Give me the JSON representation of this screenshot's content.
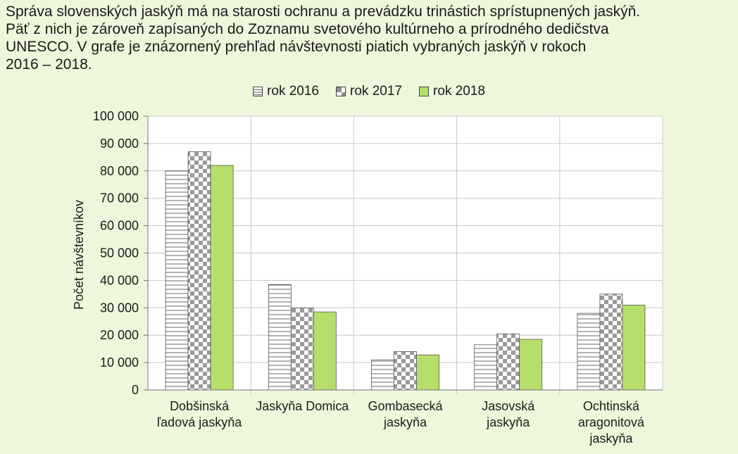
{
  "intro": {
    "line1": "Správa slovenských jaskýň má na starosti ochranu a prevádzku trinástich sprístupnených jaskýň.",
    "line2": "Päť z nich je zároveň zapísaných do Zoznamu svetového kultúrneho a prírodného dedičstva",
    "line3": "UNESCO. V grafe je znázornený prehľad návštevnosti piatich vybraných jaskýň v rokoch",
    "line4": "2016 – 2018."
  },
  "chart_data": {
    "type": "bar",
    "title": "",
    "xlabel": "",
    "ylabel": "Počet návštevníkov",
    "ylim": [
      0,
      100000
    ],
    "yticks": [
      "0",
      "10 000",
      "20 000",
      "30 000",
      "40 000",
      "50 000",
      "60 000",
      "70 000",
      "80 000",
      "90 000",
      "100 000"
    ],
    "grid": true,
    "legend_position": "top-center",
    "categories": [
      [
        "Dobšinská",
        "ľadová jaskyňa"
      ],
      [
        "Jaskyňa Domica"
      ],
      [
        "Gombasecká",
        "jaskyňa"
      ],
      [
        "Jasovská",
        "jaskyňa"
      ],
      [
        "Ochtinská",
        "aragonitová",
        "jaskyňa"
      ]
    ],
    "series": [
      {
        "name": "rok 2016",
        "pattern": "horizontal-lines",
        "color": "#ffffff",
        "values": [
          80000,
          38500,
          11000,
          16500,
          28000
        ]
      },
      {
        "name": "rok 2017",
        "pattern": "checkerboard",
        "color": "#9a9a9a",
        "values": [
          87000,
          30000,
          14000,
          20500,
          35000
        ]
      },
      {
        "name": "rok 2018",
        "pattern": "solid",
        "color": "#b5df6a",
        "values": [
          82000,
          28500,
          12800,
          18500,
          31000
        ]
      }
    ]
  }
}
